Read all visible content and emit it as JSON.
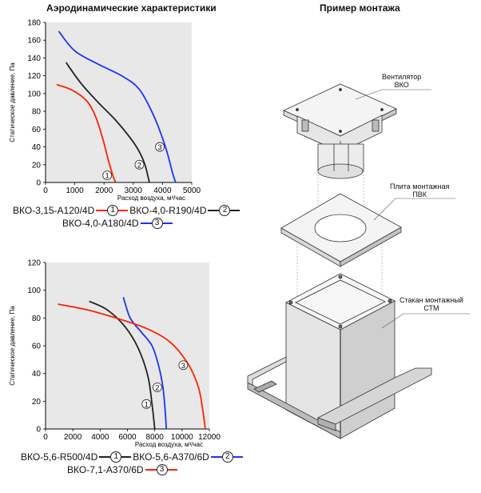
{
  "left_title": "Аэродинамические характеристики",
  "right_title": "Пример монтажа",
  "chart_data": [
    {
      "type": "line",
      "ylabel": "Статическое давление, Па",
      "xlabel": "Расход воздуха, м³/час",
      "xlim": [
        0,
        5000
      ],
      "ylim": [
        0,
        180
      ],
      "xticks": [
        0,
        1000,
        2000,
        3000,
        4000,
        5000
      ],
      "yticks": [
        0,
        20,
        40,
        60,
        80,
        100,
        120,
        140,
        160,
        180
      ],
      "grid": false,
      "series": [
        {
          "name": "ВКО-3,15-А120/4D",
          "marker": "1",
          "color": "#ff2200",
          "x": [
            380,
            900,
            1400,
            1700,
            1950,
            2150,
            2300,
            2400
          ],
          "y": [
            110,
            104,
            92,
            75,
            50,
            25,
            8,
            0
          ]
        },
        {
          "name": "ВКО-4,0-R190/4D",
          "marker": "2",
          "color": "#222222",
          "x": [
            700,
            1200,
            1800,
            2400,
            2900,
            3200,
            3400,
            3550
          ],
          "y": [
            135,
            112,
            90,
            70,
            50,
            35,
            20,
            0
          ]
        },
        {
          "name": "ВКО-4,0-А180/4D",
          "marker": "3",
          "color": "#1a33ff",
          "x": [
            450,
            1000,
            1800,
            2600,
            3200,
            3700,
            4100,
            4350,
            4450
          ],
          "y": [
            170,
            148,
            133,
            120,
            105,
            75,
            40,
            10,
            0
          ]
        }
      ],
      "legend_rows": [
        [
          "0",
          "1"
        ],
        [
          "2"
        ]
      ]
    },
    {
      "type": "line",
      "ylabel": "Статическое давление, Па",
      "xlabel": "Расход воздуха, м³/час",
      "xlim": [
        0,
        12000
      ],
      "ylim": [
        0,
        120
      ],
      "xticks": [
        0,
        2000,
        4000,
        6000,
        8000,
        10000,
        12000
      ],
      "yticks": [
        0,
        20,
        40,
        60,
        80,
        100,
        120
      ],
      "grid": false,
      "series": [
        {
          "name": "ВКО-5,6-R500/4D",
          "marker": "1",
          "color": "#222222",
          "x": [
            3200,
            4500,
            5800,
            6800,
            7500,
            7800,
            8000
          ],
          "y": [
            92,
            86,
            74,
            58,
            38,
            18,
            0
          ]
        },
        {
          "name": "ВКО-5,6-А370/6D",
          "marker": "2",
          "color": "#1a33ff",
          "x": [
            5700,
            6200,
            7000,
            7800,
            8300,
            8600,
            8750,
            8850
          ],
          "y": [
            95,
            80,
            70,
            60,
            45,
            30,
            15,
            0
          ]
        },
        {
          "name": "ВКО-7,1-А370/6D",
          "marker": "3",
          "color": "#ff2200",
          "x": [
            900,
            3000,
            5500,
            7500,
            9200,
            10500,
            11200,
            11500,
            11700
          ],
          "y": [
            90,
            86,
            79,
            72,
            62,
            46,
            30,
            15,
            0
          ]
        }
      ],
      "legend_rows": [
        [
          "0",
          "1"
        ],
        [
          "2"
        ]
      ]
    }
  ],
  "installation": {
    "label_fan": "Вентилятор\nВКО",
    "label_plate": "Плита монтажная\nПВК",
    "label_cup": "Стакан монтажный\nСТМ"
  }
}
